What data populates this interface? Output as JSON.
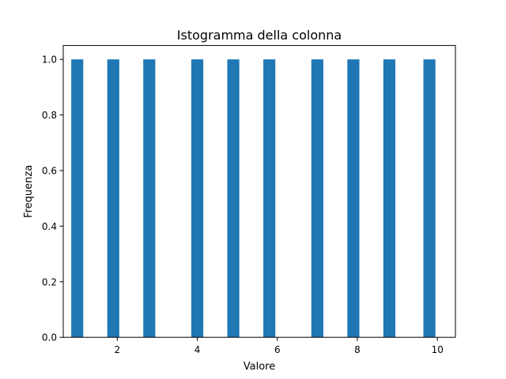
{
  "chart_data": {
    "type": "bar",
    "title": "Istogramma della colonna",
    "xlabel": "Valore",
    "ylabel": "Frequenza",
    "x": [
      1.0,
      1.9,
      2.8,
      4.0,
      4.9,
      5.8,
      7.0,
      7.9,
      8.8,
      9.8
    ],
    "values": [
      1,
      1,
      1,
      1,
      1,
      1,
      1,
      1,
      1,
      1
    ],
    "bar_width_units": 0.3,
    "xlim": [
      0.65,
      10.45
    ],
    "ylim": [
      0,
      1.05
    ],
    "xticks": [
      2,
      4,
      6,
      8,
      10
    ],
    "yticks": [
      0.0,
      0.2,
      0.4,
      0.6,
      0.8,
      1.0
    ],
    "xtick_labels": [
      "2",
      "4",
      "6",
      "8",
      "10"
    ],
    "ytick_labels": [
      "0.0",
      "0.2",
      "0.4",
      "0.6",
      "0.8",
      "1.0"
    ],
    "grid": false,
    "bar_color": "#1f77b4"
  }
}
